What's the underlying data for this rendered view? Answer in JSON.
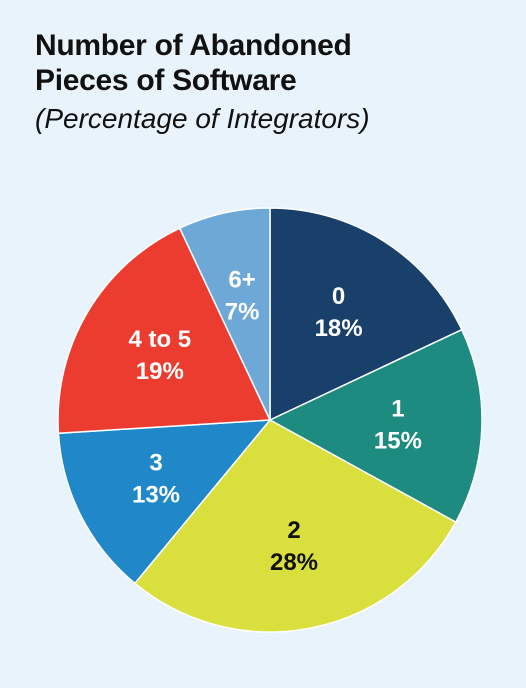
{
  "title_lines": [
    "Number of Abandoned",
    "Pieces of Software"
  ],
  "subtitle": "(Percentage of Integrators)",
  "chart_data": {
    "type": "pie",
    "title": "Number of Abandoned Pieces of Software",
    "subtitle": "(Percentage of Integrators)",
    "start_angle_deg": 0,
    "direction": "clockwise",
    "slices": [
      {
        "category": "0",
        "value": 18,
        "label": "18%",
        "color": "#18406b",
        "text_color": "#ffffff"
      },
      {
        "category": "1",
        "value": 15,
        "label": "15%",
        "color": "#1e8b80",
        "text_color": "#ffffff"
      },
      {
        "category": "2",
        "value": 28,
        "label": "28%",
        "color": "#d9df3c",
        "text_color": "#111111"
      },
      {
        "category": "3",
        "value": 13,
        "label": "13%",
        "color": "#2088c8",
        "text_color": "#ffffff"
      },
      {
        "category": "4 to 5",
        "value": 19,
        "label": "19%",
        "color": "#ec3b2f",
        "text_color": "#ffffff"
      },
      {
        "category": "6+",
        "value": 7,
        "label": "7%",
        "color": "#6ea8d6",
        "text_color": "#ffffff"
      }
    ]
  }
}
